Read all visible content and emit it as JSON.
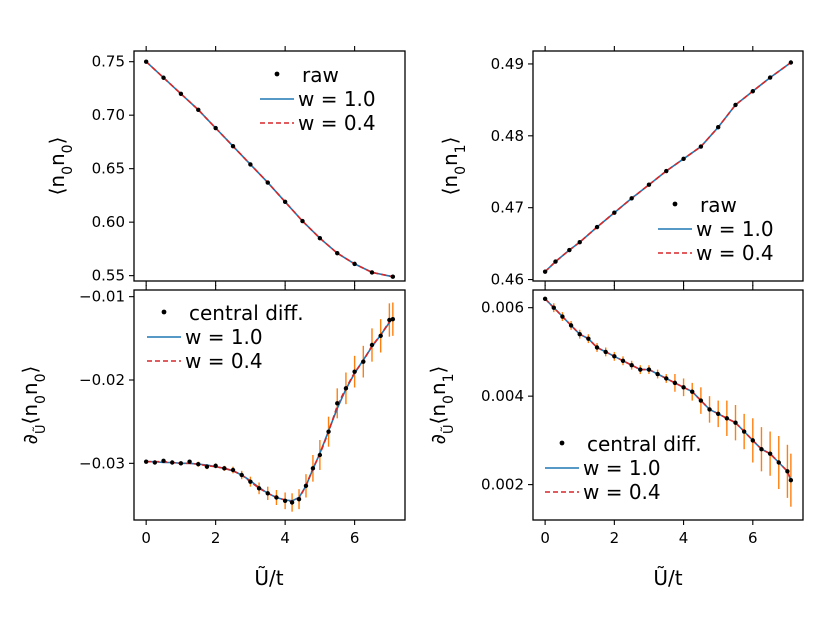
{
  "colors": {
    "raw": "#000000",
    "w10": "#1f77b4",
    "w04": "#d62728",
    "err": "#ff7f0e"
  },
  "chart_data": [
    {
      "id": "tl",
      "type": "line",
      "ylabel_main": "⟨n",
      "ylabel_sub1": "0",
      "ylabel_mid": "n",
      "ylabel_sub2": "0",
      "ylabel_end": "⟩",
      "xlim": [
        -0.35,
        7.45
      ],
      "ylim": [
        0.545,
        0.76
      ],
      "xticks": [
        0,
        2,
        4,
        6
      ],
      "xtick_labels": [
        "",
        "",
        "",
        ""
      ],
      "yticks": [
        0.55,
        0.6,
        0.65,
        0.7,
        0.75
      ],
      "ytick_labels": [
        "0.55",
        "0.60",
        "0.65",
        "0.70",
        "0.75"
      ],
      "legend": {
        "loc": "upper-right",
        "entries": [
          "raw",
          "w = 1.0",
          "w = 0.4"
        ]
      },
      "x": [
        0,
        0.5,
        1,
        1.5,
        2,
        2.5,
        3,
        3.5,
        4,
        4.5,
        5,
        5.5,
        6,
        6.5,
        7.1
      ],
      "series": [
        {
          "name": "raw",
          "style": "scatter",
          "values": [
            0.75,
            0.735,
            0.72,
            0.705,
            0.688,
            0.671,
            0.654,
            0.637,
            0.619,
            0.601,
            0.585,
            0.571,
            0.561,
            0.553,
            0.549
          ]
        },
        {
          "name": "w = 1.0",
          "style": "solid",
          "values": [
            0.75,
            0.735,
            0.72,
            0.705,
            0.688,
            0.671,
            0.654,
            0.637,
            0.619,
            0.601,
            0.585,
            0.571,
            0.561,
            0.553,
            0.549
          ]
        },
        {
          "name": "w = 0.4",
          "style": "dashed",
          "values": [
            0.75,
            0.735,
            0.72,
            0.705,
            0.688,
            0.671,
            0.654,
            0.637,
            0.619,
            0.601,
            0.585,
            0.571,
            0.561,
            0.553,
            0.549
          ]
        }
      ]
    },
    {
      "id": "tr",
      "type": "line",
      "ylabel_main": "⟨n",
      "ylabel_sub1": "0",
      "ylabel_mid": "n",
      "ylabel_sub2": "1",
      "ylabel_end": "⟩",
      "xlim": [
        -0.35,
        7.45
      ],
      "ylim": [
        0.4598,
        0.4918
      ],
      "xticks": [
        0,
        2,
        4,
        6
      ],
      "xtick_labels": [
        "",
        "",
        "",
        ""
      ],
      "yticks": [
        0.46,
        0.47,
        0.48,
        0.49
      ],
      "ytick_labels": [
        "0.46",
        "0.47",
        "0.48",
        "0.49"
      ],
      "legend": {
        "loc": "lower-right",
        "entries": [
          "raw",
          "w = 1.0",
          "w = 0.4"
        ]
      },
      "x": [
        0,
        0.3,
        0.7,
        1,
        1.5,
        2,
        2.5,
        3,
        3.5,
        4,
        4.5,
        5,
        5.5,
        6,
        6.5,
        7.1
      ],
      "series": [
        {
          "name": "raw",
          "style": "scatter",
          "values": [
            0.4611,
            0.4625,
            0.4641,
            0.4652,
            0.4673,
            0.4693,
            0.4713,
            0.4732,
            0.4751,
            0.4768,
            0.4785,
            0.4812,
            0.4843,
            0.4862,
            0.4881,
            0.4902
          ]
        },
        {
          "name": "w = 1.0",
          "style": "solid",
          "values": [
            0.4611,
            0.4625,
            0.4641,
            0.4652,
            0.4673,
            0.4693,
            0.4713,
            0.4732,
            0.4751,
            0.4768,
            0.4785,
            0.4812,
            0.4843,
            0.4862,
            0.4881,
            0.4902
          ]
        },
        {
          "name": "w = 0.4",
          "style": "dashed",
          "values": [
            0.4611,
            0.4625,
            0.4641,
            0.4652,
            0.4673,
            0.4693,
            0.4713,
            0.4732,
            0.4751,
            0.4768,
            0.4785,
            0.4812,
            0.4843,
            0.4862,
            0.4881,
            0.4902
          ]
        }
      ]
    },
    {
      "id": "bl",
      "type": "line",
      "ylabel_main": "∂",
      "ylabel_sub1": "Ũ",
      "ylabel_mid": "⟨n",
      "ylabel_sub2": "0",
      "ylabel_mid2": "n",
      "ylabel_sub3": "0",
      "ylabel_end": "⟩",
      "xlabel": "Ũ/t",
      "xlim": [
        -0.35,
        7.45
      ],
      "ylim": [
        -0.0368,
        -0.0092
      ],
      "xticks": [
        0,
        2,
        4,
        6
      ],
      "xtick_labels": [
        "0",
        "2",
        "4",
        "6"
      ],
      "yticks": [
        -0.03,
        -0.02,
        -0.01
      ],
      "ytick_labels": [
        "−0.03",
        "−0.02",
        "−0.01"
      ],
      "legend": {
        "loc": "upper-left",
        "entries": [
          "central diff.",
          "w = 1.0",
          "w = 0.4"
        ]
      },
      "x": [
        0,
        0.25,
        0.5,
        0.75,
        1,
        1.25,
        1.5,
        1.75,
        2,
        2.25,
        2.5,
        2.75,
        3,
        3.25,
        3.5,
        3.75,
        4,
        4.2,
        4.4,
        4.6,
        4.8,
        5,
        5.25,
        5.5,
        5.75,
        6,
        6.25,
        6.5,
        6.75,
        7,
        7.1
      ],
      "series": [
        {
          "name": "central diff.",
          "style": "scatter",
          "values": [
            -0.0298,
            -0.0299,
            -0.0297,
            -0.0299,
            -0.03,
            -0.0298,
            -0.0301,
            -0.0304,
            -0.0303,
            -0.0306,
            -0.0308,
            -0.0314,
            -0.0322,
            -0.033,
            -0.0336,
            -0.0341,
            -0.0345,
            -0.0347,
            -0.0343,
            -0.0327,
            -0.0306,
            -0.029,
            -0.0262,
            -0.0228,
            -0.021,
            -0.019,
            -0.0178,
            -0.0158,
            -0.0147,
            -0.0128,
            -0.0127
          ]
        },
        {
          "name": "w = 1.0",
          "style": "solid",
          "values": [
            -0.0298,
            -0.0298,
            -0.0299,
            -0.0299,
            -0.03,
            -0.03,
            -0.0301,
            -0.0302,
            -0.0304,
            -0.0306,
            -0.0309,
            -0.0314,
            -0.0321,
            -0.0329,
            -0.0336,
            -0.0341,
            -0.0344,
            -0.0345,
            -0.0341,
            -0.0327,
            -0.0307,
            -0.0288,
            -0.0261,
            -0.0234,
            -0.0211,
            -0.0192,
            -0.0176,
            -0.016,
            -0.0146,
            -0.0131,
            -0.0126
          ]
        },
        {
          "name": "w = 0.4",
          "style": "dashed",
          "values": [
            -0.0298,
            -0.0298,
            -0.0298,
            -0.0299,
            -0.03,
            -0.03,
            -0.0301,
            -0.0303,
            -0.0304,
            -0.0306,
            -0.0309,
            -0.0314,
            -0.0322,
            -0.033,
            -0.0336,
            -0.0341,
            -0.0344,
            -0.0346,
            -0.0342,
            -0.0327,
            -0.0306,
            -0.0289,
            -0.0262,
            -0.0231,
            -0.021,
            -0.0191,
            -0.0177,
            -0.0159,
            -0.0146,
            -0.013,
            -0.0126
          ]
        }
      ],
      "error": [
        0.0002,
        0.0002,
        0.0002,
        0.0002,
        0.0002,
        0.0002,
        0.0003,
        0.0003,
        0.0003,
        0.0003,
        0.0004,
        0.0005,
        0.0006,
        0.0007,
        0.0008,
        0.0009,
        0.001,
        0.0011,
        0.0012,
        0.0014,
        0.0016,
        0.0018,
        0.0018,
        0.0018,
        0.0019,
        0.0019,
        0.0019,
        0.002,
        0.002,
        0.002,
        0.002
      ]
    },
    {
      "id": "br",
      "type": "line",
      "ylabel_main": "∂",
      "ylabel_sub1": "Ũ",
      "ylabel_mid": "⟨n",
      "ylabel_sub2": "0",
      "ylabel_mid2": "n",
      "ylabel_sub3": "1",
      "ylabel_end": "⟩",
      "xlabel": "Ũ/t",
      "xlim": [
        -0.35,
        7.45
      ],
      "ylim": [
        0.0012,
        0.0064
      ],
      "xticks": [
        0,
        2,
        4,
        6
      ],
      "xtick_labels": [
        "0",
        "2",
        "4",
        "6"
      ],
      "yticks": [
        0.002,
        0.004,
        0.006
      ],
      "ytick_labels": [
        "0.002",
        "0.004",
        "0.006"
      ],
      "legend": {
        "loc": "lower-left",
        "entries": [
          "central diff.",
          "w = 1.0",
          "w = 0.4"
        ]
      },
      "x": [
        0,
        0.25,
        0.5,
        0.75,
        1,
        1.25,
        1.5,
        1.75,
        2,
        2.25,
        2.5,
        2.75,
        3,
        3.25,
        3.5,
        3.75,
        4,
        4.25,
        4.5,
        4.75,
        5,
        5.25,
        5.5,
        5.75,
        6,
        6.25,
        6.5,
        6.75,
        7,
        7.1
      ],
      "series": [
        {
          "name": "central diff.",
          "style": "scatter",
          "values": [
            0.0062,
            0.006,
            0.0058,
            0.0056,
            0.0054,
            0.0053,
            0.0051,
            0.005,
            0.0049,
            0.0048,
            0.0047,
            0.0046,
            0.0046,
            0.0045,
            0.0044,
            0.0043,
            0.0042,
            0.0041,
            0.0039,
            0.0037,
            0.0036,
            0.0035,
            0.0034,
            0.0032,
            0.003,
            0.0028,
            0.0027,
            0.0025,
            0.0023,
            0.0021
          ]
        },
        {
          "name": "w = 1.0",
          "style": "solid",
          "values": [
            0.0062,
            0.006,
            0.0058,
            0.0056,
            0.0054,
            0.0053,
            0.0051,
            0.005,
            0.0049,
            0.0048,
            0.0047,
            0.0046,
            0.0046,
            0.0045,
            0.0044,
            0.0043,
            0.0042,
            0.0041,
            0.0039,
            0.0037,
            0.0036,
            0.0035,
            0.0034,
            0.0032,
            0.003,
            0.0028,
            0.0027,
            0.0025,
            0.0023,
            0.0021
          ]
        },
        {
          "name": "w = 0.4",
          "style": "dashed",
          "values": [
            0.0062,
            0.006,
            0.0058,
            0.0056,
            0.0054,
            0.0053,
            0.0051,
            0.005,
            0.0049,
            0.0048,
            0.0047,
            0.0046,
            0.0046,
            0.0045,
            0.0044,
            0.0043,
            0.0042,
            0.0041,
            0.0039,
            0.0037,
            0.0036,
            0.0035,
            0.0034,
            0.0032,
            0.003,
            0.0028,
            0.0027,
            0.0025,
            0.0023,
            0.0021
          ]
        }
      ],
      "error": [
        0.0,
        0.0001,
        0.0001,
        0.0001,
        0.0001,
        0.0001,
        0.0001,
        0.0001,
        0.0001,
        0.0001,
        0.0001,
        0.0001,
        0.0001,
        0.0001,
        0.0001,
        0.0002,
        0.0002,
        0.0002,
        0.0003,
        0.0003,
        0.0003,
        0.0004,
        0.0004,
        0.0004,
        0.0005,
        0.0005,
        0.0005,
        0.0006,
        0.0006,
        0.0006
      ]
    }
  ]
}
